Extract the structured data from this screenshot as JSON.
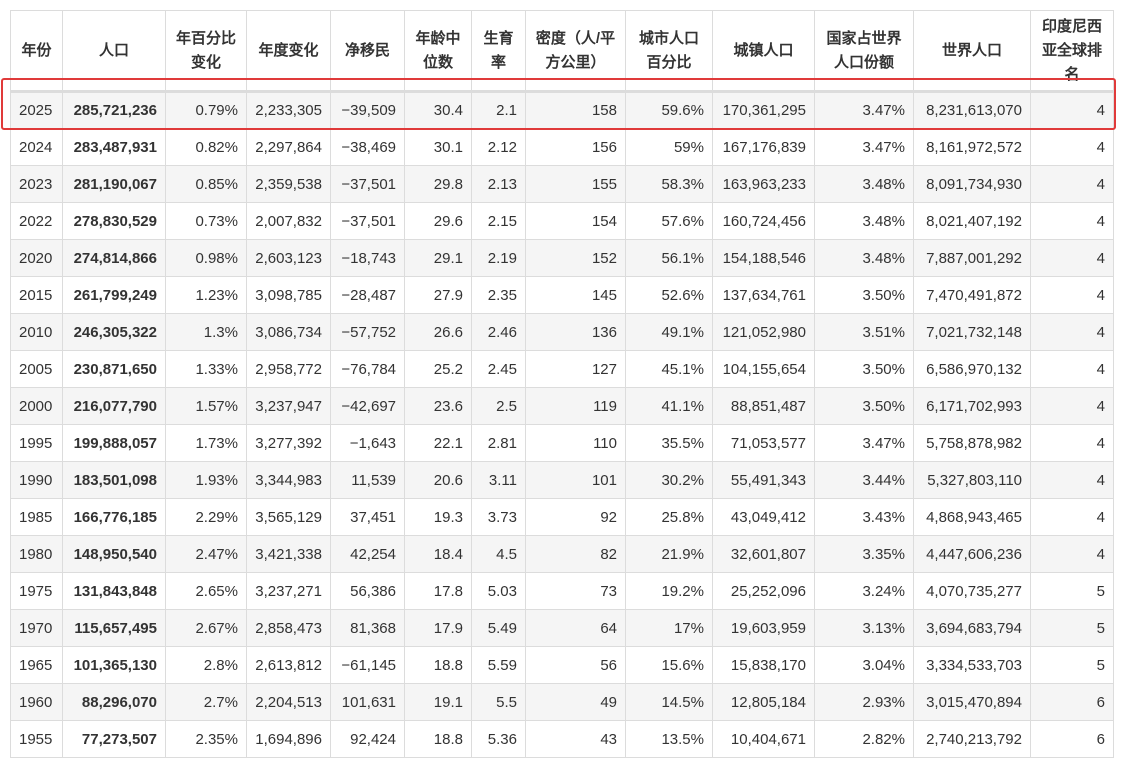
{
  "table": {
    "headers": [
      "年份",
      "人口",
      "年百分比变化",
      "年度变化",
      "净移民",
      "年龄中位数",
      "生育率",
      "密度（人/平方公里）",
      "城市人口百分比",
      "城镇人口",
      "国家占世界人口份额",
      "世界人口",
      "印度尼西亚全球排名"
    ],
    "rows": [
      [
        "2025",
        "285,721,236",
        "0.79%",
        "2,233,305",
        "−39,509",
        "30.4",
        "2.1",
        "158",
        "59.6%",
        "170,361,295",
        "3.47%",
        "8,231,613,070",
        "4"
      ],
      [
        "2024",
        "283,487,931",
        "0.82%",
        "2,297,864",
        "−38,469",
        "30.1",
        "2.12",
        "156",
        "59%",
        "167,176,839",
        "3.47%",
        "8,161,972,572",
        "4"
      ],
      [
        "2023",
        "281,190,067",
        "0.85%",
        "2,359,538",
        "−37,501",
        "29.8",
        "2.13",
        "155",
        "58.3%",
        "163,963,233",
        "3.48%",
        "8,091,734,930",
        "4"
      ],
      [
        "2022",
        "278,830,529",
        "0.73%",
        "2,007,832",
        "−37,501",
        "29.6",
        "2.15",
        "154",
        "57.6%",
        "160,724,456",
        "3.48%",
        "8,021,407,192",
        "4"
      ],
      [
        "2020",
        "274,814,866",
        "0.98%",
        "2,603,123",
        "−18,743",
        "29.1",
        "2.19",
        "152",
        "56.1%",
        "154,188,546",
        "3.48%",
        "7,887,001,292",
        "4"
      ],
      [
        "2015",
        "261,799,249",
        "1.23%",
        "3,098,785",
        "−28,487",
        "27.9",
        "2.35",
        "145",
        "52.6%",
        "137,634,761",
        "3.50%",
        "7,470,491,872",
        "4"
      ],
      [
        "2010",
        "246,305,322",
        "1.3%",
        "3,086,734",
        "−57,752",
        "26.6",
        "2.46",
        "136",
        "49.1%",
        "121,052,980",
        "3.51%",
        "7,021,732,148",
        "4"
      ],
      [
        "2005",
        "230,871,650",
        "1.33%",
        "2,958,772",
        "−76,784",
        "25.2",
        "2.45",
        "127",
        "45.1%",
        "104,155,654",
        "3.50%",
        "6,586,970,132",
        "4"
      ],
      [
        "2000",
        "216,077,790",
        "1.57%",
        "3,237,947",
        "−42,697",
        "23.6",
        "2.5",
        "119",
        "41.1%",
        "88,851,487",
        "3.50%",
        "6,171,702,993",
        "4"
      ],
      [
        "1995",
        "199,888,057",
        "1.73%",
        "3,277,392",
        "−1,643",
        "22.1",
        "2.81",
        "110",
        "35.5%",
        "71,053,577",
        "3.47%",
        "5,758,878,982",
        "4"
      ],
      [
        "1990",
        "183,501,098",
        "1.93%",
        "3,344,983",
        "11,539",
        "20.6",
        "3.11",
        "101",
        "30.2%",
        "55,491,343",
        "3.44%",
        "5,327,803,110",
        "4"
      ],
      [
        "1985",
        "166,776,185",
        "2.29%",
        "3,565,129",
        "37,451",
        "19.3",
        "3.73",
        "92",
        "25.8%",
        "43,049,412",
        "3.43%",
        "4,868,943,465",
        "4"
      ],
      [
        "1980",
        "148,950,540",
        "2.47%",
        "3,421,338",
        "42,254",
        "18.4",
        "4.5",
        "82",
        "21.9%",
        "32,601,807",
        "3.35%",
        "4,447,606,236",
        "4"
      ],
      [
        "1975",
        "131,843,848",
        "2.65%",
        "3,237,271",
        "56,386",
        "17.8",
        "5.03",
        "73",
        "19.2%",
        "25,252,096",
        "3.24%",
        "4,070,735,277",
        "5"
      ],
      [
        "1970",
        "115,657,495",
        "2.67%",
        "2,858,473",
        "81,368",
        "17.9",
        "5.49",
        "64",
        "17%",
        "19,603,959",
        "3.13%",
        "3,694,683,794",
        "5"
      ],
      [
        "1965",
        "101,365,130",
        "2.8%",
        "2,613,812",
        "−61,145",
        "18.8",
        "5.59",
        "56",
        "15.6%",
        "15,838,170",
        "3.04%",
        "3,334,533,703",
        "5"
      ],
      [
        "1960",
        "88,296,070",
        "2.7%",
        "2,204,513",
        "101,631",
        "19.1",
        "5.5",
        "49",
        "14.5%",
        "12,805,184",
        "2.93%",
        "3,015,470,894",
        "6"
      ],
      [
        "1955",
        "77,273,507",
        "2.35%",
        "1,694,896",
        "92,424",
        "18.8",
        "5.36",
        "43",
        "13.5%",
        "10,404,671",
        "2.82%",
        "2,740,213,792",
        "6"
      ]
    ]
  }
}
